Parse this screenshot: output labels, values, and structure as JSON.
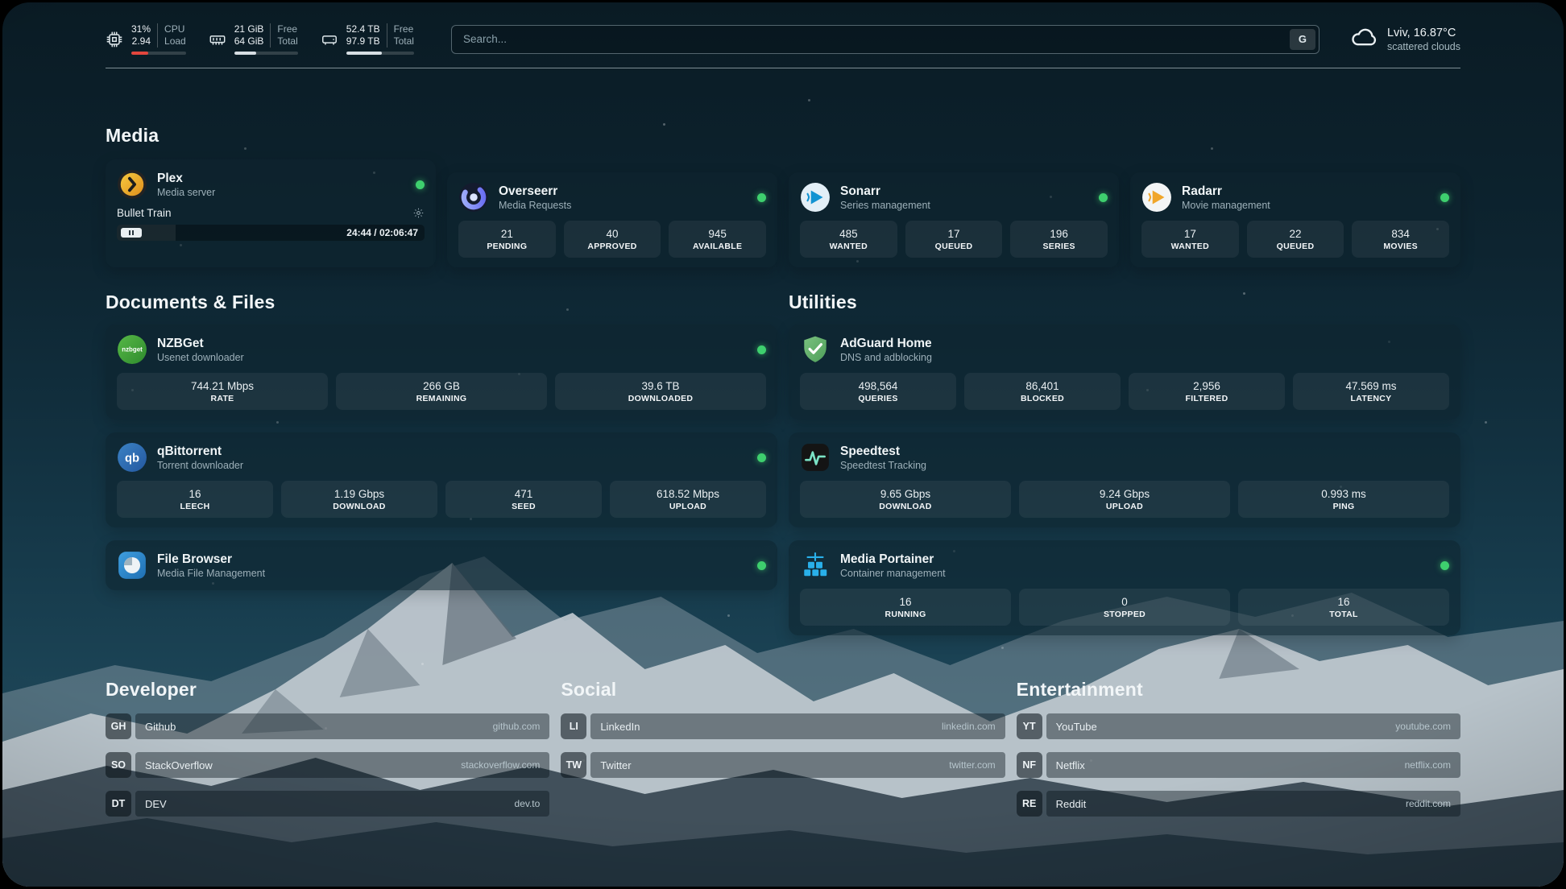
{
  "header": {
    "cpu": {
      "value1": "31%",
      "value2": "2.94",
      "label1": "CPU",
      "label2": "Load",
      "percent": 31
    },
    "memory": {
      "value1": "21 GiB",
      "value2": "64 GiB",
      "label1": "Free",
      "label2": "Total",
      "percent": 34
    },
    "disk": {
      "value1": "52.4 TB",
      "value2": "97.9 TB",
      "label1": "Free",
      "label2": "Total",
      "percent": 52
    },
    "search": {
      "placeholder": "Search...",
      "button_label": "G"
    },
    "weather": {
      "location": "Lviv, 16.87°C",
      "condition": "scattered clouds"
    }
  },
  "sections": {
    "media": "Media",
    "documents": "Documents & Files",
    "utilities": "Utilities",
    "developer": "Developer",
    "social": "Social",
    "entertainment": "Entertainment"
  },
  "apps": {
    "plex": {
      "name": "Plex",
      "subtitle": "Media server",
      "now_playing": "Bullet Train",
      "time": "24:44 / 02:06:47",
      "progress_percent": 19
    },
    "overseerr": {
      "name": "Overseerr",
      "subtitle": "Media Requests",
      "stats": [
        {
          "value": "21",
          "label": "PENDING"
        },
        {
          "value": "40",
          "label": "APPROVED"
        },
        {
          "value": "945",
          "label": "AVAILABLE"
        }
      ]
    },
    "sonarr": {
      "name": "Sonarr",
      "subtitle": "Series management",
      "stats": [
        {
          "value": "485",
          "label": "WANTED"
        },
        {
          "value": "17",
          "label": "QUEUED"
        },
        {
          "value": "196",
          "label": "SERIES"
        }
      ]
    },
    "radarr": {
      "name": "Radarr",
      "subtitle": "Movie management",
      "stats": [
        {
          "value": "17",
          "label": "WANTED"
        },
        {
          "value": "22",
          "label": "QUEUED"
        },
        {
          "value": "834",
          "label": "MOVIES"
        }
      ]
    },
    "nzbget": {
      "name": "NZBGet",
      "subtitle": "Usenet downloader",
      "icon_label": "nzbget",
      "stats": [
        {
          "value": "744.21 Mbps",
          "label": "RATE"
        },
        {
          "value": "266 GB",
          "label": "REMAINING"
        },
        {
          "value": "39.6 TB",
          "label": "DOWNLOADED"
        }
      ]
    },
    "qbittorrent": {
      "name": "qBittorrent",
      "subtitle": "Torrent downloader",
      "icon_label": "qb",
      "stats": [
        {
          "value": "16",
          "label": "LEECH"
        },
        {
          "value": "1.19 Gbps",
          "label": "DOWNLOAD"
        },
        {
          "value": "471",
          "label": "SEED"
        },
        {
          "value": "618.52 Mbps",
          "label": "UPLOAD"
        }
      ]
    },
    "filebrowser": {
      "name": "File Browser",
      "subtitle": "Media File Management"
    },
    "adguard": {
      "name": "AdGuard Home",
      "subtitle": "DNS and adblocking",
      "stats": [
        {
          "value": "498,564",
          "label": "QUERIES"
        },
        {
          "value": "86,401",
          "label": "BLOCKED"
        },
        {
          "value": "2,956",
          "label": "FILTERED"
        },
        {
          "value": "47.569 ms",
          "label": "LATENCY"
        }
      ]
    },
    "speedtest": {
      "name": "Speedtest",
      "subtitle": "Speedtest Tracking",
      "stats": [
        {
          "value": "9.65 Gbps",
          "label": "DOWNLOAD"
        },
        {
          "value": "9.24 Gbps",
          "label": "UPLOAD"
        },
        {
          "value": "0.993 ms",
          "label": "PING"
        }
      ]
    },
    "portainer": {
      "name": "Media Portainer",
      "subtitle": "Container management",
      "stats": [
        {
          "value": "16",
          "label": "RUNNING"
        },
        {
          "value": "0",
          "label": "STOPPED"
        },
        {
          "value": "16",
          "label": "TOTAL"
        }
      ]
    }
  },
  "links": {
    "developer": [
      {
        "abbr": "GH",
        "name": "Github",
        "url": "github.com"
      },
      {
        "abbr": "SO",
        "name": "StackOverflow",
        "url": "stackoverflow.com"
      },
      {
        "abbr": "DT",
        "name": "DEV",
        "url": "dev.to"
      }
    ],
    "social": [
      {
        "abbr": "LI",
        "name": "LinkedIn",
        "url": "linkedin.com"
      },
      {
        "abbr": "TW",
        "name": "Twitter",
        "url": "twitter.com"
      }
    ],
    "entertainment": [
      {
        "abbr": "YT",
        "name": "YouTube",
        "url": "youtube.com"
      },
      {
        "abbr": "NF",
        "name": "Netflix",
        "url": "netflix.com"
      },
      {
        "abbr": "RE",
        "name": "Reddit",
        "url": "reddit.com"
      }
    ]
  },
  "colors": {
    "status_green": "#3ecf6e",
    "cpu_bar": "#e2463d",
    "mem_bar": "#d7dee3",
    "disk_bar": "#d7dee3"
  }
}
